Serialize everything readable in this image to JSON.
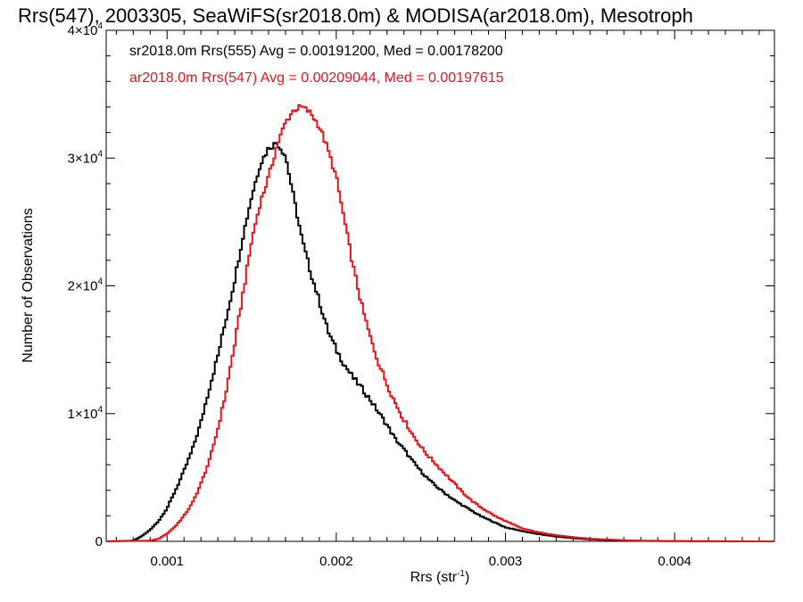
{
  "chart_data": {
    "type": "line",
    "title": "Rrs(547), 2003305, SeaWiFS(sr2018.0m) & MODISA(ar2018.0m), Mesotroph",
    "xlabel": "Rrs (str",
    "xlabel_superscript": "-1",
    "xlabel_suffix": ")",
    "ylabel": "Number of Observations",
    "xlim": [
      0.00064,
      0.00459
    ],
    "ylim": [
      0,
      40000
    ],
    "x_ticks": [
      {
        "value": 0.001,
        "label": "0.001"
      },
      {
        "value": 0.002,
        "label": "0.002"
      },
      {
        "value": 0.003,
        "label": "0.003"
      },
      {
        "value": 0.004,
        "label": "0.004"
      }
    ],
    "y_ticks": [
      {
        "value": 0,
        "base": "0",
        "exp": ""
      },
      {
        "value": 10000,
        "base": "1×10",
        "exp": "4"
      },
      {
        "value": 20000,
        "base": "2×10",
        "exp": "4"
      },
      {
        "value": 30000,
        "base": "3×10",
        "exp": "4"
      },
      {
        "value": 40000,
        "base": "4×10",
        "exp": "4"
      }
    ],
    "grid": false,
    "legend_position": "top-left",
    "series": [
      {
        "name": "sr2018.0m Rrs(555) Avg = 0.00191200, Med = 0.00178200",
        "color": "#000000",
        "x": [
          0.00064,
          0.0008,
          0.00085,
          0.0009,
          0.00095,
          0.001,
          0.00105,
          0.0011,
          0.00115,
          0.0012,
          0.00125,
          0.0013,
          0.00135,
          0.0014,
          0.00145,
          0.0015,
          0.00155,
          0.0016,
          0.00165,
          0.0017,
          0.00175,
          0.0018,
          0.00185,
          0.0019,
          0.00195,
          0.002,
          0.00205,
          0.0021,
          0.00215,
          0.0022,
          0.00225,
          0.0023,
          0.00235,
          0.0024,
          0.00245,
          0.0025,
          0.00255,
          0.0026,
          0.00265,
          0.0027,
          0.00275,
          0.0028,
          0.00285,
          0.0029,
          0.00295,
          0.003,
          0.0031,
          0.0032,
          0.0033,
          0.0034,
          0.0035,
          0.0036,
          0.0037,
          0.0038,
          0.0039,
          0.004,
          0.0041,
          0.0042,
          0.0043,
          0.0044,
          0.0045,
          0.00459
        ],
        "y": [
          0,
          50,
          400,
          900,
          1600,
          2600,
          4000,
          5500,
          7200,
          9300,
          12000,
          14500,
          17500,
          20500,
          24000,
          27000,
          29500,
          30800,
          31200,
          30200,
          26800,
          23500,
          21000,
          18800,
          16500,
          15000,
          13800,
          12800,
          12000,
          11100,
          10100,
          9100,
          8000,
          7200,
          6300,
          5500,
          4800,
          4200,
          3700,
          3200,
          2800,
          2400,
          2000,
          1700,
          1400,
          1100,
          800,
          550,
          380,
          250,
          160,
          100,
          60,
          40,
          25,
          15,
          10,
          5,
          3,
          2,
          1,
          0
        ]
      },
      {
        "name": "ar2018.0m Rrs(547) Avg = 0.00209044, Med = 0.00197615",
        "color": "#e8141c",
        "x": [
          0.00064,
          0.0009,
          0.00095,
          0.001,
          0.00105,
          0.0011,
          0.00115,
          0.0012,
          0.00125,
          0.0013,
          0.00135,
          0.0014,
          0.00145,
          0.0015,
          0.00155,
          0.0016,
          0.00165,
          0.0017,
          0.00175,
          0.0018,
          0.00185,
          0.0019,
          0.00195,
          0.002,
          0.00205,
          0.0021,
          0.00215,
          0.0022,
          0.00225,
          0.0023,
          0.00235,
          0.0024,
          0.00245,
          0.0025,
          0.00255,
          0.0026,
          0.00265,
          0.0027,
          0.00275,
          0.0028,
          0.00285,
          0.0029,
          0.00295,
          0.003,
          0.00305,
          0.0031,
          0.0032,
          0.0033,
          0.0034,
          0.0035,
          0.0036,
          0.0037,
          0.0038,
          0.0039,
          0.004,
          0.0041,
          0.0042,
          0.0043,
          0.0044,
          0.0045,
          0.00459
        ],
        "y": [
          0,
          50,
          200,
          600,
          1200,
          2000,
          3000,
          4500,
          6300,
          8800,
          11800,
          15500,
          19500,
          23500,
          26500,
          28500,
          31000,
          32800,
          33800,
          34000,
          33500,
          32500,
          30700,
          28500,
          25000,
          21500,
          18500,
          16000,
          14000,
          12300,
          10800,
          9500,
          8400,
          7400,
          6600,
          5900,
          5200,
          4500,
          3800,
          3200,
          2700,
          2300,
          1900,
          1600,
          1300,
          1000,
          700,
          480,
          320,
          210,
          140,
          90,
          60,
          40,
          25,
          15,
          10,
          6,
          3,
          1,
          0
        ]
      }
    ]
  }
}
